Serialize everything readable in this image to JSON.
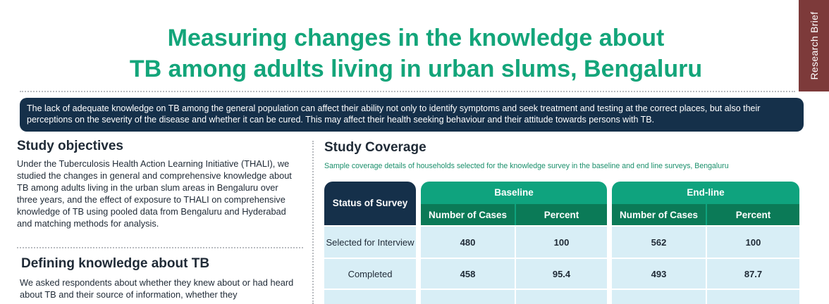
{
  "title": {
    "line1": "Measuring changes in the knowledge about",
    "line2": "TB among adults living in urban slums, Bengaluru"
  },
  "side_tab": "Research Brief",
  "intro": "The lack of adequate knowledge on TB among the general population can affect their ability not only to identify symptoms and seek treatment and testing at the correct places, but also their perceptions on the severity of the disease and whether it can be cured. This may affect their health seeking behaviour and their attitude towards persons with TB.",
  "objectives": {
    "heading": "Study objectives",
    "text": "Under the Tuberculosis Health Action Learning Initiative (THALI), we studied the changes in general and comprehensive knowledge about TB among adults living in the urban slum areas in Bengaluru over three years, and the effect of exposure to THALI on comprehensive knowledge of TB using pooled data from Bengaluru and Hyderabad and matching methods for analysis."
  },
  "knowledge": {
    "heading": "Defining knowledge about TB",
    "text": "We asked respondents about whether they knew about or had heard about TB and their source of information, whether they"
  },
  "coverage": {
    "heading": "Study Coverage",
    "caption": "Sample coverage details of households selected for the knowledge survey in the baseline and end line surveys, Bengaluru",
    "table": {
      "status_header": "Status of Survey",
      "groups": [
        {
          "label": "Baseline",
          "cols": [
            "Number of Cases",
            "Percent"
          ]
        },
        {
          "label": "End-line",
          "cols": [
            "Number of Cases",
            "Percent"
          ]
        }
      ],
      "rows": [
        {
          "status": "Selected for Interview",
          "values": [
            "480",
            "100",
            "562",
            "100"
          ]
        },
        {
          "status": "Completed",
          "values": [
            "458",
            "95.4",
            "493",
            "87.7"
          ]
        }
      ]
    }
  }
}
